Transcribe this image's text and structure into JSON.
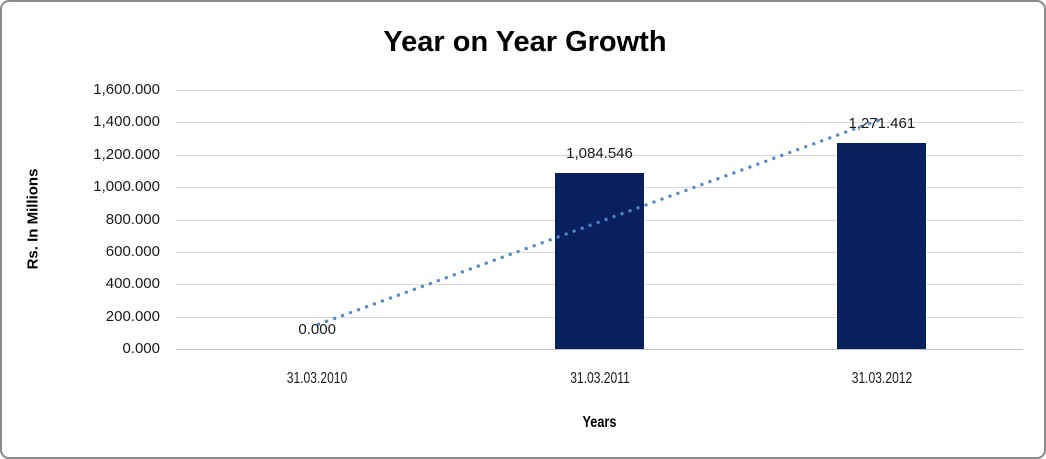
{
  "chart_data": {
    "type": "bar",
    "title": "Year on Year Growth",
    "categories": [
      "31.03.2010",
      "31.03.2011",
      "31.03.2012"
    ],
    "values": [
      0,
      1084.546,
      1271.461
    ],
    "data_labels": [
      "0.000",
      "1,084.546",
      "1,271.461"
    ],
    "xlabel": "Years",
    "ylabel": "Rs. In Millions",
    "ylim": [
      0,
      1600
    ],
    "ytick_step": 200,
    "ytick_labels": [
      "0.000",
      "200.000",
      "400.000",
      "600.000",
      "800.000",
      "1,000.000",
      "1,200.000",
      "1,400.000",
      "1,600.000"
    ],
    "grid": true,
    "legend": "none",
    "trendline": {
      "type": "linear",
      "style": "dotted"
    },
    "colors": {
      "bar": "#08215E",
      "trendline": "#4E86C6",
      "gridline": "#D9D9D9",
      "axis_line": "#C3C3C3",
      "text": "#1A1A1A",
      "frame_border": "#8C8C8C",
      "background": "#FFFFFF"
    }
  }
}
